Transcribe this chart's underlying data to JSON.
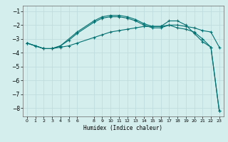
{
  "title": "",
  "xlabel": "Humidex (Indice chaleur)",
  "ylabel": "",
  "bg_color": "#d4eeed",
  "grid_color": "#c0dddd",
  "line_color": "#007070",
  "xlim": [
    -0.5,
    23.5
  ],
  "ylim": [
    -8.6,
    -0.6
  ],
  "xticks": [
    0,
    1,
    2,
    3,
    4,
    5,
    6,
    8,
    9,
    10,
    11,
    12,
    13,
    14,
    15,
    16,
    17,
    18,
    19,
    20,
    21,
    22,
    23
  ],
  "yticks": [
    -1,
    -2,
    -3,
    -4,
    -5,
    -6,
    -7,
    -8
  ],
  "line1_x": [
    0,
    1,
    2,
    3,
    4,
    5,
    6,
    8,
    9,
    10,
    11,
    12,
    13,
    14,
    15,
    16,
    17,
    18,
    19,
    20,
    21,
    22,
    23
  ],
  "line1_y": [
    -3.3,
    -3.5,
    -3.7,
    -3.7,
    -3.5,
    -3.1,
    -2.6,
    -1.8,
    -1.5,
    -1.4,
    -1.4,
    -1.5,
    -1.7,
    -2.0,
    -2.2,
    -2.2,
    -2.0,
    -2.2,
    -2.3,
    -2.5,
    -3.0,
    -3.6,
    -8.2
  ],
  "line2_x": [
    0,
    1,
    2,
    3,
    4,
    5,
    6,
    8,
    9,
    10,
    11,
    12,
    13,
    14,
    15,
    16,
    17,
    18,
    19,
    20,
    21,
    22,
    23
  ],
  "line2_y": [
    -3.3,
    -3.5,
    -3.7,
    -3.7,
    -3.6,
    -3.5,
    -3.3,
    -2.9,
    -2.7,
    -2.5,
    -2.4,
    -2.3,
    -2.2,
    -2.1,
    -2.1,
    -2.1,
    -2.0,
    -2.0,
    -2.1,
    -2.2,
    -2.4,
    -2.5,
    -3.6
  ],
  "line3_x": [
    0,
    2,
    3,
    4,
    6,
    8,
    9,
    10,
    11,
    12,
    13,
    14,
    15,
    16,
    17,
    18,
    19,
    20,
    21,
    22,
    23
  ],
  "line3_y": [
    -3.3,
    -3.7,
    -3.7,
    -3.5,
    -2.5,
    -1.7,
    -1.4,
    -1.3,
    -1.3,
    -1.4,
    -1.6,
    -1.9,
    -2.1,
    -2.1,
    -1.7,
    -1.7,
    -2.0,
    -2.6,
    -3.2,
    -3.6,
    -8.2
  ],
  "marker": "+",
  "markersize": 3,
  "linewidth": 0.8
}
